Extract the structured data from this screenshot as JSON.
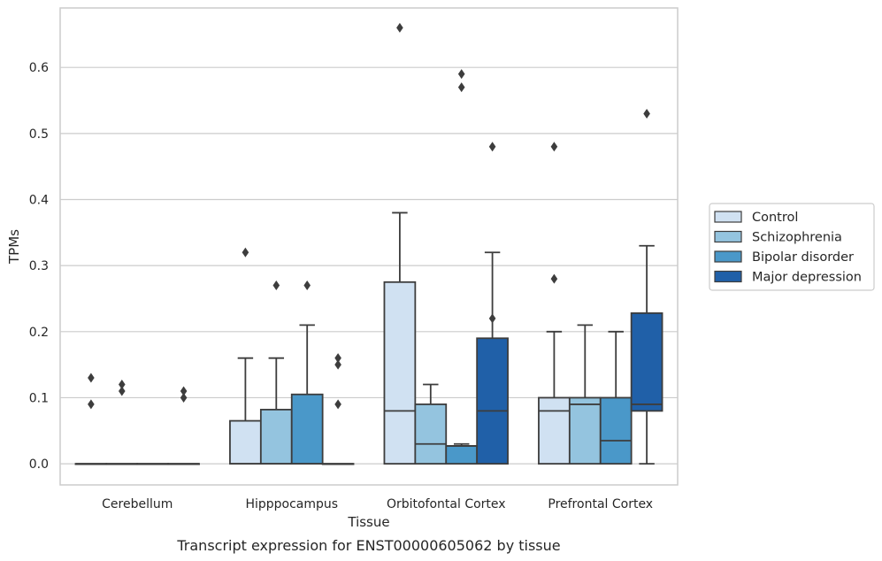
{
  "chart_data": {
    "type": "boxplot",
    "caption": "Transcript expression for ENST00000605062 by tissue",
    "xlabel": "Tissue",
    "ylabel": "TPMs",
    "ylim": [
      -0.032,
      0.69
    ],
    "yticks": [
      "0.0",
      "0.1",
      "0.2",
      "0.3",
      "0.4",
      "0.5",
      "0.6"
    ],
    "grid": true,
    "legend_position": "right",
    "categories": [
      "Cerebellum",
      "Hipppocampus",
      "Orbitofontal Cortex",
      "Prefrontal Cortex"
    ],
    "series": [
      {
        "name": "Control",
        "color": "#d0e1f2",
        "boxes": [
          {
            "min": 0,
            "q1": 0,
            "median": 0,
            "q3": 0,
            "max": 0,
            "outliers": [
              0.09,
              0.13
            ]
          },
          {
            "min": 0,
            "q1": 0,
            "median": 0,
            "q3": 0.065,
            "max": 0.16,
            "outliers": [
              0.32
            ]
          },
          {
            "min": 0,
            "q1": 0,
            "median": 0.08,
            "q3": 0.275,
            "max": 0.38,
            "outliers": [
              0.66
            ]
          },
          {
            "min": 0,
            "q1": 0,
            "median": 0.08,
            "q3": 0.1,
            "max": 0.2,
            "outliers": [
              0.28,
              0.48
            ]
          }
        ]
      },
      {
        "name": "Schizophrenia",
        "color": "#94c4df",
        "boxes": [
          {
            "min": 0,
            "q1": 0,
            "median": 0,
            "q3": 0,
            "max": 0,
            "outliers": [
              0.11,
              0.12
            ]
          },
          {
            "min": 0,
            "q1": 0,
            "median": 0,
            "q3": 0.082,
            "max": 0.16,
            "outliers": [
              0.27
            ]
          },
          {
            "min": 0,
            "q1": 0,
            "median": 0.03,
            "q3": 0.09,
            "max": 0.12,
            "outliers": []
          },
          {
            "min": 0,
            "q1": 0,
            "median": 0.09,
            "q3": 0.1,
            "max": 0.21,
            "outliers": []
          }
        ]
      },
      {
        "name": "Bipolar disorder",
        "color": "#4a98c9",
        "boxes": [
          {
            "min": 0,
            "q1": 0,
            "median": 0,
            "q3": 0,
            "max": 0,
            "outliers": []
          },
          {
            "min": 0,
            "q1": 0,
            "median": 0,
            "q3": 0.105,
            "max": 0.21,
            "outliers": [
              0.27
            ]
          },
          {
            "min": 0,
            "q1": 0,
            "median": 0.027,
            "q3": 0.027,
            "max": 0.03,
            "outliers": [
              0.57,
              0.59
            ]
          },
          {
            "min": 0,
            "q1": 0,
            "median": 0.035,
            "q3": 0.1,
            "max": 0.2,
            "outliers": []
          }
        ]
      },
      {
        "name": "Major depression",
        "color": "#2060a8",
        "boxes": [
          {
            "min": 0,
            "q1": 0,
            "median": 0,
            "q3": 0,
            "max": 0,
            "outliers": [
              0.1,
              0.11
            ]
          },
          {
            "min": 0,
            "q1": 0,
            "median": 0,
            "q3": 0,
            "max": 0,
            "outliers": [
              0.09,
              0.15,
              0.16
            ]
          },
          {
            "min": 0,
            "q1": 0,
            "median": 0.08,
            "q3": 0.19,
            "max": 0.32,
            "outliers": [
              0.22,
              0.48
            ]
          },
          {
            "min": 0,
            "q1": 0.08,
            "median": 0.09,
            "q3": 0.228,
            "max": 0.33,
            "outliers": [
              0.53
            ]
          }
        ]
      }
    ]
  }
}
